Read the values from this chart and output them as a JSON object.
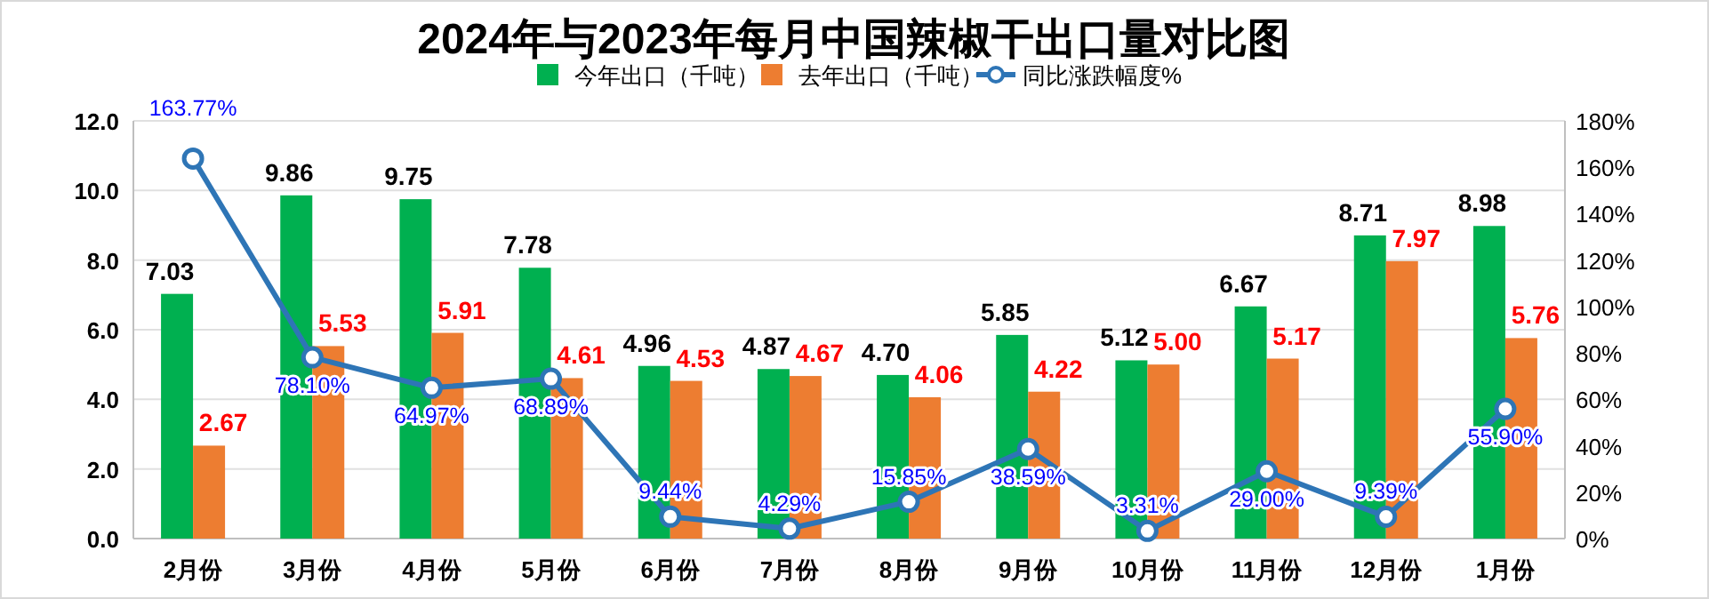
{
  "chart_data": {
    "type": "bar",
    "title": "2024年与2023年每月中国辣椒干出口量对比图",
    "categories": [
      "2月份",
      "3月份",
      "4月份",
      "5月份",
      "6月份",
      "7月份",
      "8月份",
      "9月份",
      "10月份",
      "11月份",
      "12月份",
      "1月份"
    ],
    "series": [
      {
        "name": "今年出口（千吨）",
        "color": "#00b050",
        "value_labels": [
          "7.03",
          "9.86",
          "9.75",
          "7.78",
          "4.96",
          "4.87",
          "4.70",
          "5.85",
          "5.12",
          "6.67",
          "8.71",
          "8.98"
        ],
        "values": [
          7.03,
          9.86,
          9.75,
          7.78,
          4.96,
          4.87,
          4.7,
          5.85,
          5.12,
          6.67,
          8.71,
          8.98
        ]
      },
      {
        "name": "去年出口（千吨）",
        "color": "#ed7d31",
        "value_labels": [
          "2.67",
          "5.53",
          "5.91",
          "4.61",
          "4.53",
          "4.67",
          "4.06",
          "4.22",
          "5.00",
          "5.17",
          "7.97",
          "5.76"
        ],
        "values": [
          2.67,
          5.53,
          5.91,
          4.61,
          4.53,
          4.67,
          4.06,
          4.22,
          5.0,
          5.17,
          7.97,
          5.76
        ]
      },
      {
        "name": "同比涨跌幅度%",
        "type": "line",
        "axis": "y2",
        "color": "#2e75b6",
        "value_labels": [
          "163.77%",
          "78.10%",
          "64.97%",
          "68.89%",
          "9.44%",
          "4.29%",
          "15.85%",
          "38.59%",
          "3.31%",
          "29.00%",
          "9.39%",
          "55.90%"
        ],
        "values": [
          163.77,
          78.1,
          64.97,
          68.89,
          9.44,
          4.29,
          15.85,
          38.59,
          3.31,
          29.0,
          9.39,
          55.9
        ]
      }
    ],
    "ylim": [
      0,
      12
    ],
    "yticks": [
      {
        "value": 0,
        "label": "0.0"
      },
      {
        "value": 2,
        "label": "2.0"
      },
      {
        "value": 4,
        "label": "4.0"
      },
      {
        "value": 6,
        "label": "6.0"
      },
      {
        "value": 8,
        "label": "8.0"
      },
      {
        "value": 10,
        "label": "10.0"
      },
      {
        "value": 12,
        "label": "12.0"
      }
    ],
    "y2lim": [
      0,
      180
    ],
    "y2ticks": [
      {
        "value": 0,
        "label": "0%"
      },
      {
        "value": 20,
        "label": "20%"
      },
      {
        "value": 40,
        "label": "40%"
      },
      {
        "value": 60,
        "label": "60%"
      },
      {
        "value": 80,
        "label": "80%"
      },
      {
        "value": 100,
        "label": "100%"
      },
      {
        "value": 120,
        "label": "120%"
      },
      {
        "value": 140,
        "label": "140%"
      },
      {
        "value": 160,
        "label": "160%"
      },
      {
        "value": 180,
        "label": "180%"
      }
    ],
    "grid": "y",
    "legend": "top",
    "data_labels": true,
    "marker": "circle"
  }
}
